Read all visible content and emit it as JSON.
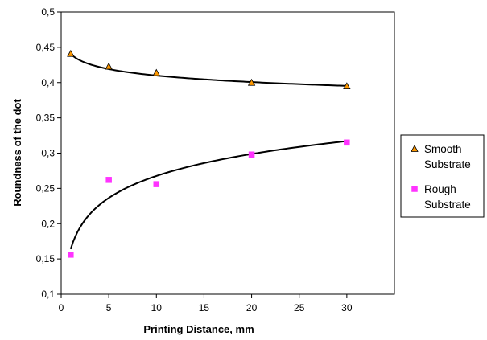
{
  "chart_data": {
    "type": "scatter",
    "xlabel": "Printing Distance, mm",
    "ylabel": "Roundness of the dot",
    "xlim": [
      0,
      35
    ],
    "ylim": [
      0.1,
      0.5
    ],
    "x_ticks": [
      0,
      5,
      10,
      15,
      20,
      25,
      30
    ],
    "x_tick_labels": [
      "0",
      "5",
      "10",
      "15",
      "20",
      "25",
      "30"
    ],
    "y_ticks": [
      0.1,
      0.15,
      0.2,
      0.25,
      0.3,
      0.35,
      0.4,
      0.45,
      0.5
    ],
    "y_tick_labels": [
      "0,1",
      "0,15",
      "0,2",
      "0,25",
      "0,3",
      "0,35",
      "0,4",
      "0,45",
      "0,5"
    ],
    "grid": false,
    "legend_position": "right",
    "series": [
      {
        "name": "Smooth Substrate",
        "legend_lines": [
          "Smooth",
          "Substrate"
        ],
        "marker": "triangle",
        "marker_fill": "#FF9900",
        "marker_stroke": "#000000",
        "x": [
          1,
          5,
          10,
          20,
          30
        ],
        "y": [
          0.441,
          0.423,
          0.414,
          0.4,
          0.395
        ],
        "trendline": {
          "type": "log",
          "a": 0.4406,
          "b": -0.0133
        }
      },
      {
        "name": "Rough Substrate",
        "legend_lines": [
          "Rough",
          "Substrate"
        ],
        "marker": "square",
        "marker_fill": "#FF33FF",
        "marker_stroke": "#FF33FF",
        "x": [
          1,
          5,
          10,
          20,
          30
        ],
        "y": [
          0.156,
          0.262,
          0.256,
          0.298,
          0.315
        ],
        "trendline": {
          "type": "log",
          "a": 0.164,
          "b": 0.045
        }
      }
    ]
  }
}
